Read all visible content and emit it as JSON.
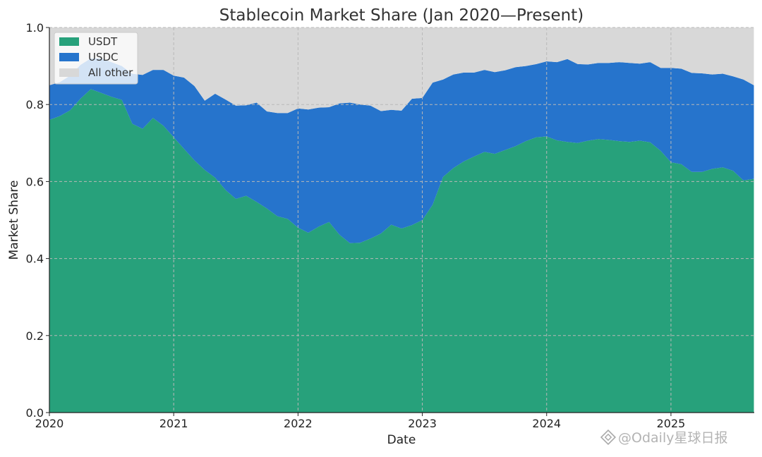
{
  "chart_data": {
    "type": "area",
    "stacked": true,
    "title": "Stablecoin Market Share (Jan 2020—Present)",
    "xlabel": "Date",
    "ylabel": "Market Share",
    "xlim": [
      2020.0,
      2025.67
    ],
    "ylim": [
      0,
      1.0
    ],
    "grid": true,
    "legend_position": "top-left",
    "x_ticks": [
      "2020",
      "2021",
      "2022",
      "2023",
      "2024",
      "2025"
    ],
    "y_ticks": [
      "0.0",
      "0.2",
      "0.4",
      "0.6",
      "0.8",
      "1.0"
    ],
    "x": [
      2020.0,
      2020.083,
      2020.167,
      2020.25,
      2020.333,
      2020.417,
      2020.5,
      2020.583,
      2020.667,
      2020.75,
      2020.833,
      2020.917,
      2021.0,
      2021.083,
      2021.167,
      2021.25,
      2021.333,
      2021.417,
      2021.5,
      2021.583,
      2021.667,
      2021.75,
      2021.833,
      2021.917,
      2022.0,
      2022.083,
      2022.167,
      2022.25,
      2022.333,
      2022.417,
      2022.5,
      2022.583,
      2022.667,
      2022.75,
      2022.833,
      2022.917,
      2023.0,
      2023.083,
      2023.167,
      2023.25,
      2023.333,
      2023.417,
      2023.5,
      2023.583,
      2023.667,
      2023.75,
      2023.833,
      2023.917,
      2024.0,
      2024.083,
      2024.167,
      2024.25,
      2024.333,
      2024.417,
      2024.5,
      2024.583,
      2024.667,
      2024.75,
      2024.833,
      2024.917,
      2025.0,
      2025.083,
      2025.167,
      2025.25,
      2025.333,
      2025.417,
      2025.5,
      2025.583,
      2025.667
    ],
    "series": [
      {
        "name": "USDT",
        "color": "#27a17b",
        "values": [
          0.76,
          0.77,
          0.785,
          0.815,
          0.84,
          0.83,
          0.82,
          0.812,
          0.75,
          0.737,
          0.765,
          0.745,
          0.715,
          0.685,
          0.655,
          0.63,
          0.61,
          0.578,
          0.555,
          0.563,
          0.547,
          0.53,
          0.51,
          0.503,
          0.48,
          0.467,
          0.483,
          0.495,
          0.462,
          0.44,
          0.441,
          0.452,
          0.465,
          0.488,
          0.478,
          0.487,
          0.5,
          0.54,
          0.612,
          0.635,
          0.652,
          0.665,
          0.677,
          0.672,
          0.682,
          0.692,
          0.705,
          0.715,
          0.717,
          0.707,
          0.703,
          0.7,
          0.706,
          0.71,
          0.708,
          0.705,
          0.703,
          0.706,
          0.702,
          0.68,
          0.65,
          0.645,
          0.625,
          0.625,
          0.633,
          0.637,
          0.628,
          0.603,
          0.607
        ]
      },
      {
        "name": "USDC",
        "color": "#2674cc",
        "values": [
          0.09,
          0.088,
          0.09,
          0.088,
          0.08,
          0.09,
          0.09,
          0.088,
          0.13,
          0.14,
          0.125,
          0.145,
          0.16,
          0.185,
          0.193,
          0.18,
          0.218,
          0.235,
          0.242,
          0.235,
          0.258,
          0.252,
          0.268,
          0.275,
          0.31,
          0.32,
          0.309,
          0.298,
          0.341,
          0.365,
          0.359,
          0.345,
          0.318,
          0.298,
          0.306,
          0.328,
          0.317,
          0.317,
          0.253,
          0.243,
          0.231,
          0.218,
          0.213,
          0.212,
          0.207,
          0.205,
          0.195,
          0.19,
          0.195,
          0.203,
          0.215,
          0.205,
          0.198,
          0.198,
          0.2,
          0.205,
          0.205,
          0.2,
          0.208,
          0.215,
          0.245,
          0.248,
          0.257,
          0.256,
          0.245,
          0.243,
          0.245,
          0.262,
          0.243
        ]
      },
      {
        "name": "All other",
        "color": "#d8d8d8",
        "values": [
          0.15,
          0.142,
          0.125,
          0.097,
          0.08,
          0.08,
          0.09,
          0.1,
          0.12,
          0.123,
          0.11,
          0.11,
          0.125,
          0.13,
          0.152,
          0.19,
          0.172,
          0.187,
          0.203,
          0.202,
          0.195,
          0.218,
          0.222,
          0.222,
          0.21,
          0.213,
          0.208,
          0.207,
          0.197,
          0.195,
          0.2,
          0.203,
          0.217,
          0.214,
          0.216,
          0.185,
          0.183,
          0.143,
          0.135,
          0.122,
          0.117,
          0.117,
          0.11,
          0.116,
          0.111,
          0.103,
          0.1,
          0.095,
          0.088,
          0.09,
          0.082,
          0.095,
          0.096,
          0.092,
          0.092,
          0.09,
          0.092,
          0.094,
          0.09,
          0.105,
          0.105,
          0.107,
          0.118,
          0.119,
          0.122,
          0.12,
          0.127,
          0.135,
          0.15
        ]
      }
    ]
  },
  "watermark": {
    "text": "@Odaily星球日报",
    "icon": "odaily-logo-icon"
  }
}
